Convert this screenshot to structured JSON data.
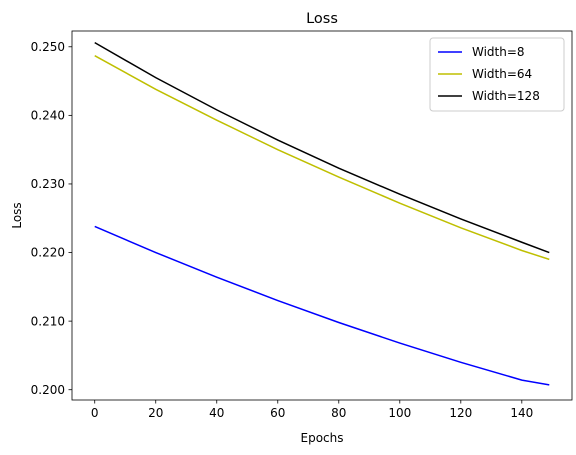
{
  "chart_data": {
    "type": "line",
    "title": "Loss",
    "xlabel": "Epochs",
    "ylabel": "Loss",
    "xlim": [
      -7.45,
      156.45
    ],
    "ylim": [
      0.1985,
      0.2523
    ],
    "xticks": [
      0,
      20,
      40,
      60,
      80,
      100,
      120,
      140
    ],
    "yticks": [
      0.2,
      0.21,
      0.22,
      0.23,
      0.24,
      0.25
    ],
    "grid": false,
    "legend_position": "top-right",
    "series": [
      {
        "name": "Width=8",
        "color": "#0000ff",
        "x": [
          0,
          20,
          40,
          60,
          80,
          100,
          120,
          140,
          149
        ],
        "y": [
          0.2238,
          0.22,
          0.2164,
          0.213,
          0.2098,
          0.2068,
          0.204,
          0.2014,
          0.2007
        ]
      },
      {
        "name": "Width=64",
        "color": "#bfbf00",
        "x": [
          0,
          20,
          40,
          60,
          80,
          100,
          120,
          140,
          149
        ],
        "y": [
          0.2487,
          0.2438,
          0.2393,
          0.235,
          0.231,
          0.2272,
          0.2236,
          0.2203,
          0.219
        ]
      },
      {
        "name": "Width=128",
        "color": "#000000",
        "x": [
          0,
          20,
          40,
          60,
          80,
          100,
          120,
          140,
          149
        ],
        "y": [
          0.2506,
          0.2455,
          0.2408,
          0.2364,
          0.2323,
          0.2285,
          0.2249,
          0.2215,
          0.22
        ]
      }
    ]
  }
}
